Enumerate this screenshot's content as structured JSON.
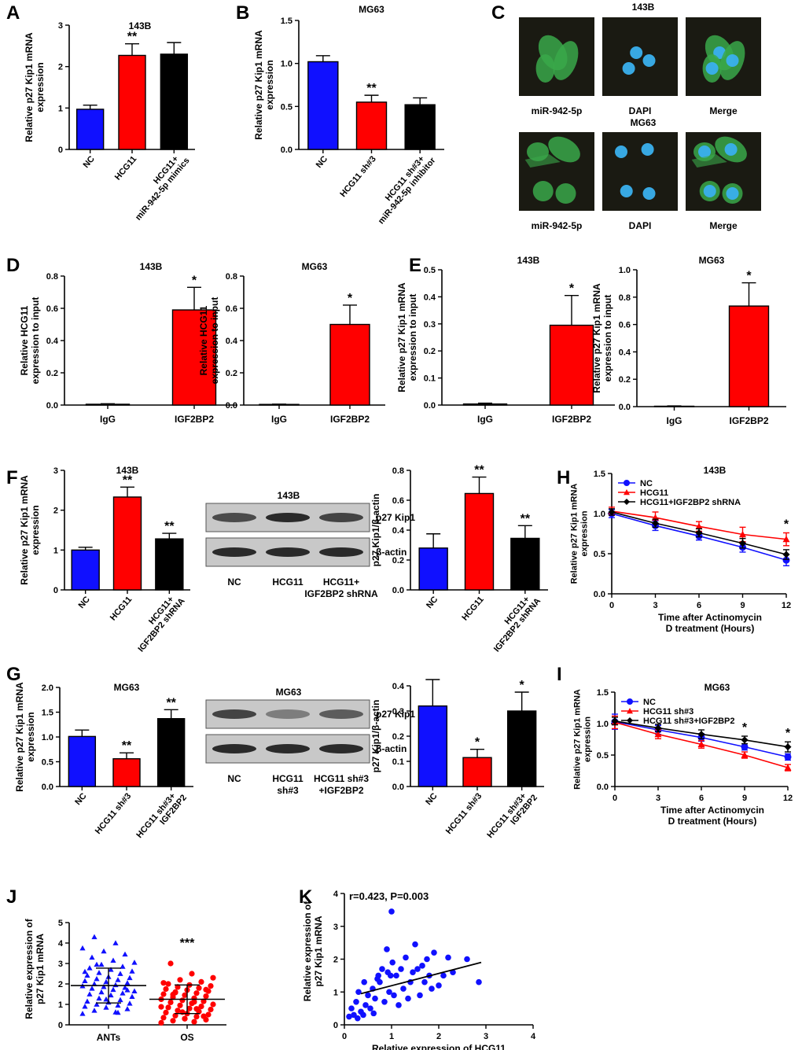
{
  "panel_letters": [
    "A",
    "B",
    "C",
    "D",
    "E",
    "F",
    "G",
    "H",
    "I",
    "J",
    "K"
  ],
  "colors": {
    "blue": "#1010ff",
    "red": "#ff0000",
    "black": "#000000",
    "micro_bg": "#1a1a12",
    "green_cell": "#3aa84a",
    "blue_nuc": "#3ab0ee"
  },
  "micrographs": {
    "title_top": "143B",
    "title_bottom": "MG63",
    "labels_top": [
      "miR-942-5p",
      "DAPI",
      "Merge"
    ],
    "labels_bottom": [
      "miR-942-5p",
      "DAPI",
      "Merge"
    ]
  },
  "blots": {
    "F": {
      "title": "143B",
      "bands": [
        "p27 Kip1",
        "β-actin"
      ],
      "lanes": [
        "NC",
        "HCG11",
        "HCG11+\nIGF2BP2 shRNA"
      ],
      "intensity": [
        0.75,
        0.95,
        0.8
      ]
    },
    "G": {
      "title": "MG63",
      "bands": [
        "p27 Kip1",
        "β-actin"
      ],
      "lanes": [
        "NC",
        "HCG11\nsh#3",
        "HCG11 sh#3\n+IGF2BP2"
      ],
      "intensity": [
        0.8,
        0.45,
        0.65
      ]
    }
  },
  "chart_data": [
    {
      "id": "A",
      "type": "bar",
      "title": "143B",
      "ylabel": "Relative p27 Kip1 mRNA\nexpression",
      "ylim": [
        0,
        3
      ],
      "yticks": [
        0,
        1,
        2,
        3
      ],
      "categories": [
        "NC",
        "HCG11",
        "HCG11+\nmiR-942-5p mimics"
      ],
      "values": [
        0.97,
        2.27,
        2.3
      ],
      "errors": [
        0.1,
        0.28,
        0.28
      ],
      "colors": [
        "blue",
        "red",
        "black"
      ],
      "sig": [
        "",
        "**",
        ""
      ]
    },
    {
      "id": "B",
      "type": "bar",
      "title": "MG63",
      "ylabel": "Relative p27 Kip1 mRNA\nexpression",
      "ylim": [
        0,
        1.5
      ],
      "yticks": [
        0.0,
        0.5,
        1.0,
        1.5
      ],
      "categories": [
        "NC",
        "HCG11 sh#3",
        "HCG11 sh#3+\nmiR-942-5p inhibitor"
      ],
      "values": [
        1.02,
        0.55,
        0.52
      ],
      "errors": [
        0.07,
        0.08,
        0.08
      ],
      "colors": [
        "blue",
        "red",
        "black"
      ],
      "sig": [
        "",
        "**",
        ""
      ]
    },
    {
      "id": "D1",
      "type": "bar",
      "title": "143B",
      "ylabel": "Relative HCG11\nexpression to input",
      "ylim": [
        0,
        0.8
      ],
      "yticks": [
        0.0,
        0.2,
        0.4,
        0.6,
        0.8
      ],
      "categories": [
        "IgG",
        "IGF2BP2"
      ],
      "values": [
        0.005,
        0.59
      ],
      "errors": [
        0.003,
        0.14
      ],
      "colors": [
        "blue",
        "red"
      ],
      "sig": [
        "",
        "*"
      ]
    },
    {
      "id": "D2",
      "type": "bar",
      "title": "MG63",
      "ylabel": "Relative HCG11\nexpression to input",
      "ylim": [
        0,
        0.8
      ],
      "yticks": [
        0.0,
        0.2,
        0.4,
        0.6,
        0.8
      ],
      "categories": [
        "IgG",
        "IGF2BP2"
      ],
      "values": [
        0.004,
        0.5
      ],
      "errors": [
        0.002,
        0.12
      ],
      "colors": [
        "blue",
        "red"
      ],
      "sig": [
        "",
        "*"
      ]
    },
    {
      "id": "E1",
      "type": "bar",
      "title": "143B",
      "ylabel": "Relative p27 Kip1 mRNA\nexpression to input",
      "ylim": [
        0,
        0.5
      ],
      "yticks": [
        0.0,
        0.1,
        0.2,
        0.3,
        0.4,
        0.5
      ],
      "categories": [
        "IgG",
        "IGF2BP2"
      ],
      "values": [
        0.004,
        0.295
      ],
      "errors": [
        0.003,
        0.11
      ],
      "colors": [
        "blue",
        "red"
      ],
      "sig": [
        "",
        "*"
      ]
    },
    {
      "id": "E2",
      "type": "bar",
      "title": "MG63",
      "ylabel": "Relative p27 Kip1 mRNA\nexpression to input",
      "ylim": [
        0,
        1.0
      ],
      "yticks": [
        0.0,
        0.2,
        0.4,
        0.6,
        0.8,
        1.0
      ],
      "categories": [
        "IgG",
        "IGF2BP2"
      ],
      "values": [
        0.003,
        0.735
      ],
      "errors": [
        0.002,
        0.17
      ],
      "colors": [
        "blue",
        "red"
      ],
      "sig": [
        "",
        "*"
      ]
    },
    {
      "id": "F1",
      "type": "bar",
      "title": "143B",
      "ylabel": "Relative p27 Kip1 mRNA\nexpression",
      "ylim": [
        0,
        3
      ],
      "yticks": [
        0,
        1,
        2,
        3
      ],
      "categories": [
        "NC",
        "HCG11",
        "HCG11+\nIGF2BP2 shRNA"
      ],
      "values": [
        1.0,
        2.33,
        1.28
      ],
      "errors": [
        0.07,
        0.25,
        0.14
      ],
      "colors": [
        "blue",
        "red",
        "black"
      ],
      "sig": [
        "",
        "**",
        "**"
      ]
    },
    {
      "id": "F2",
      "type": "bar",
      "title": "",
      "ylabel": "p27 Kip1/β-actin",
      "ylim": [
        0,
        0.8
      ],
      "yticks": [
        0.0,
        0.2,
        0.4,
        0.6,
        0.8
      ],
      "categories": [
        "NC",
        "HCG11",
        "HCG11+\nIGF2BP2 shRNA"
      ],
      "values": [
        0.28,
        0.645,
        0.345
      ],
      "errors": [
        0.095,
        0.11,
        0.085
      ],
      "colors": [
        "blue",
        "red",
        "black"
      ],
      "sig": [
        "",
        "**",
        "**"
      ]
    },
    {
      "id": "G1",
      "type": "bar",
      "title": "MG63",
      "ylabel": "Relative p27 Kip1 mRNA\nexpression",
      "ylim": [
        0,
        2.0
      ],
      "yticks": [
        0.0,
        0.5,
        1.0,
        1.5,
        2.0
      ],
      "categories": [
        "NC",
        "HCG11 sh#3",
        "HCG11 sh#3+\nIGF2BP2"
      ],
      "values": [
        1.01,
        0.56,
        1.37
      ],
      "errors": [
        0.13,
        0.12,
        0.18
      ],
      "colors": [
        "blue",
        "red",
        "black"
      ],
      "sig": [
        "",
        "**",
        "**"
      ]
    },
    {
      "id": "G2",
      "type": "bar",
      "title": "",
      "ylabel": "p27 Kip1/β-actin",
      "ylim": [
        0,
        0.4
      ],
      "yticks": [
        0.0,
        0.1,
        0.2,
        0.3,
        0.4
      ],
      "categories": [
        "NC",
        "HCG11 sh#3",
        "HCG11 sh#3+\nIGF2BP2"
      ],
      "values": [
        0.32,
        0.115,
        0.3
      ],
      "errors": [
        0.105,
        0.033,
        0.075
      ],
      "colors": [
        "blue",
        "red",
        "black"
      ],
      "sig": [
        "",
        "*",
        "*"
      ]
    },
    {
      "id": "H",
      "type": "line",
      "title": "143B",
      "ylabel": "Relative p27 Kip1  mRNA\nexpression",
      "xlabel": "Time after Actinomycin\nD treatment (Hours)",
      "x": [
        0,
        3,
        6,
        9,
        12
      ],
      "xlim": [
        0,
        12
      ],
      "ylim": [
        0,
        1.5
      ],
      "yticks": [
        0.0,
        0.5,
        1.0,
        1.5
      ],
      "series": [
        {
          "name": "NC",
          "color": "blue",
          "marker": "circle",
          "values": [
            1.0,
            0.85,
            0.72,
            0.58,
            0.42
          ],
          "errors": [
            0.05,
            0.06,
            0.05,
            0.06,
            0.07
          ]
        },
        {
          "name": "HCG11",
          "color": "red",
          "marker": "triangle",
          "values": [
            1.03,
            0.95,
            0.84,
            0.74,
            0.68
          ],
          "errors": [
            0.05,
            0.07,
            0.06,
            0.09,
            0.08
          ]
        },
        {
          "name": "HCG11+IGF2BP2 shRNA",
          "color": "black",
          "marker": "diamond",
          "values": [
            1.02,
            0.88,
            0.76,
            0.63,
            0.49
          ],
          "errors": [
            0.04,
            0.05,
            0.05,
            0.06,
            0.06
          ]
        }
      ],
      "sig_at": [
        {
          "x": 12,
          "text": "*"
        }
      ]
    },
    {
      "id": "I",
      "type": "line",
      "title": "MG63",
      "ylabel": "Relative p27 Kip1  mRNA\nexpression",
      "xlabel": "Time after Actinomycin\nD treatment (Hours)",
      "x": [
        0,
        3,
        6,
        9,
        12
      ],
      "xlim": [
        0,
        12
      ],
      "ylim": [
        0,
        1.5
      ],
      "yticks": [
        0.0,
        0.5,
        1.0,
        1.5
      ],
      "series": [
        {
          "name": "NC",
          "color": "blue",
          "marker": "circle",
          "values": [
            1.03,
            0.9,
            0.78,
            0.63,
            0.47
          ],
          "errors": [
            0.12,
            0.07,
            0.06,
            0.05,
            0.05
          ]
        },
        {
          "name": "HCG11 sh#3",
          "color": "red",
          "marker": "triangle",
          "values": [
            1.02,
            0.83,
            0.67,
            0.5,
            0.3
          ],
          "errors": [
            0.1,
            0.07,
            0.06,
            0.05,
            0.05
          ]
        },
        {
          "name": "HCG11 sh#3+IGF2BP2",
          "color": "black",
          "marker": "diamond",
          "values": [
            1.04,
            0.93,
            0.83,
            0.74,
            0.63
          ],
          "errors": [
            0.06,
            0.06,
            0.07,
            0.06,
            0.08
          ]
        }
      ],
      "sig_at": [
        {
          "x": 9,
          "text": "*"
        },
        {
          "x": 12,
          "text": "*"
        }
      ]
    },
    {
      "id": "J",
      "type": "scatter",
      "title": "",
      "ylabel": "Relative expression of\np27 Kip1 mRNA",
      "ylim": [
        0,
        5
      ],
      "yticks": [
        0,
        1,
        2,
        3,
        4,
        5
      ],
      "categories": [
        "ANTs",
        "OS"
      ],
      "groups": [
        {
          "name": "ANTs",
          "color": "blue",
          "marker": "triangle",
          "mean": 1.92,
          "sd_lo": 1.07,
          "sd_hi": 2.77,
          "values": [
            0.55,
            0.62,
            0.7,
            0.78,
            0.85,
            0.9,
            0.95,
            1.0,
            1.05,
            1.1,
            1.15,
            1.22,
            1.3,
            1.38,
            1.45,
            1.5,
            1.55,
            1.6,
            1.65,
            1.72,
            1.78,
            1.82,
            1.86,
            1.9,
            1.95,
            2.0,
            2.05,
            2.1,
            2.15,
            2.2,
            2.25,
            2.3,
            2.35,
            2.42,
            2.5,
            2.55,
            2.62,
            2.7,
            2.78,
            2.85,
            2.95,
            3.05,
            3.15,
            3.3,
            3.45,
            3.6,
            3.75,
            4.0,
            4.3,
            1.7,
            1.25,
            2.6,
            0.6,
            2.95
          ]
        },
        {
          "name": "OS",
          "color": "red",
          "marker": "circle",
          "mean": 1.25,
          "sd_lo": 0.55,
          "sd_hi": 1.95,
          "values": [
            0.1,
            0.15,
            0.2,
            0.25,
            0.3,
            0.35,
            0.4,
            0.45,
            0.5,
            0.55,
            0.6,
            0.65,
            0.7,
            0.75,
            0.8,
            0.85,
            0.9,
            0.95,
            1.0,
            1.05,
            1.1,
            1.15,
            1.2,
            1.25,
            1.3,
            1.35,
            1.4,
            1.45,
            1.5,
            1.55,
            1.6,
            1.65,
            1.7,
            1.75,
            1.8,
            1.85,
            1.9,
            1.95,
            2.0,
            2.1,
            2.2,
            2.3,
            2.5,
            3.0,
            0.42,
            0.62,
            0.88,
            1.12,
            1.48,
            1.72,
            0.3,
            2.05,
            0.78,
            1.58
          ]
        }
      ],
      "sig": [
        "",
        "***"
      ]
    },
    {
      "id": "K",
      "type": "scatter",
      "title": "",
      "annotation": "r=0.423, P=0.003",
      "ylabel": "Relative expression of\np27 Kip1 mRNA",
      "xlabel": "Relative expression of HCG11",
      "xlim": [
        0,
        4
      ],
      "ylim": [
        0,
        4
      ],
      "xticks": [
        0,
        1,
        2,
        3,
        4
      ],
      "yticks": [
        0,
        1,
        2,
        3,
        4
      ],
      "fit": {
        "x1": 0.35,
        "y1": 0.95,
        "x2": 2.9,
        "y2": 1.9
      },
      "points": [
        [
          0.1,
          0.25
        ],
        [
          0.15,
          0.5
        ],
        [
          0.2,
          0.3
        ],
        [
          0.25,
          0.7
        ],
        [
          0.28,
          0.2
        ],
        [
          0.3,
          1.0
        ],
        [
          0.35,
          0.4
        ],
        [
          0.4,
          0.3
        ],
        [
          0.42,
          1.3
        ],
        [
          0.45,
          0.6
        ],
        [
          0.5,
          0.9
        ],
        [
          0.55,
          0.5
        ],
        [
          0.6,
          1.1
        ],
        [
          0.62,
          0.35
        ],
        [
          0.65,
          0.8
        ],
        [
          0.7,
          1.4
        ],
        [
          0.72,
          1.5
        ],
        [
          0.75,
          1.3
        ],
        [
          0.8,
          1.7
        ],
        [
          0.85,
          0.7
        ],
        [
          0.9,
          2.3
        ],
        [
          0.92,
          1.6
        ],
        [
          0.95,
          1.0
        ],
        [
          0.98,
          1.5
        ],
        [
          1.0,
          3.45
        ],
        [
          1.02,
          1.9
        ],
        [
          1.05,
          0.9
        ],
        [
          1.1,
          1.5
        ],
        [
          1.15,
          0.6
        ],
        [
          1.2,
          1.7
        ],
        [
          1.25,
          1.1
        ],
        [
          1.3,
          2.05
        ],
        [
          1.35,
          0.8
        ],
        [
          1.4,
          1.3
        ],
        [
          1.45,
          1.6
        ],
        [
          1.5,
          2.45
        ],
        [
          1.55,
          1.7
        ],
        [
          1.6,
          0.9
        ],
        [
          1.65,
          1.8
        ],
        [
          1.7,
          1.3
        ],
        [
          1.75,
          2.0
        ],
        [
          1.8,
          1.5
        ],
        [
          1.85,
          1.1
        ],
        [
          1.9,
          2.2
        ],
        [
          2.0,
          1.2
        ],
        [
          2.1,
          1.5
        ],
        [
          2.2,
          2.05
        ],
        [
          2.3,
          1.6
        ],
        [
          2.6,
          2.0
        ],
        [
          2.85,
          1.3
        ]
      ]
    }
  ]
}
